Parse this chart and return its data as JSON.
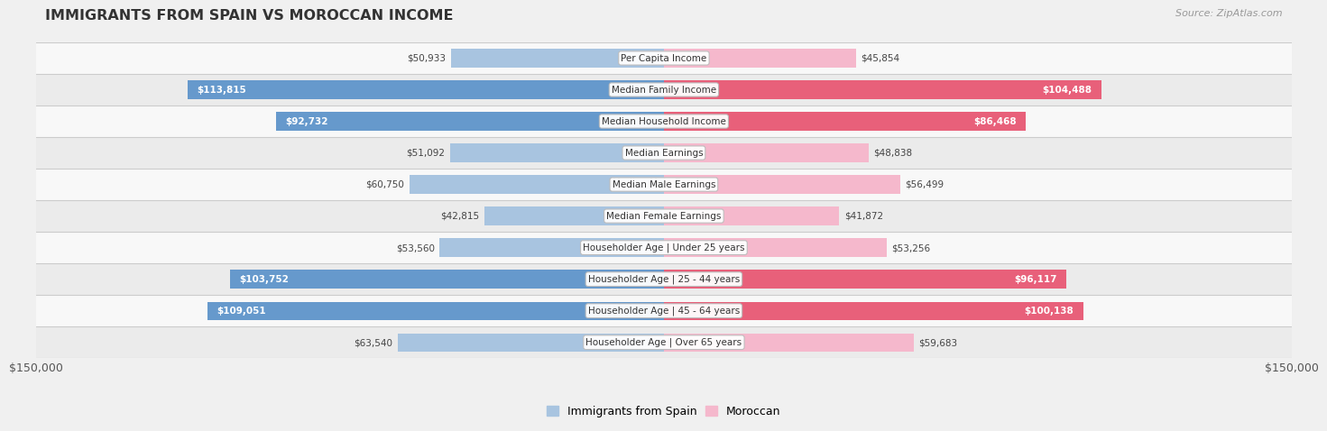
{
  "title": "IMMIGRANTS FROM SPAIN VS MOROCCAN INCOME",
  "source": "Source: ZipAtlas.com",
  "categories": [
    "Per Capita Income",
    "Median Family Income",
    "Median Household Income",
    "Median Earnings",
    "Median Male Earnings",
    "Median Female Earnings",
    "Householder Age | Under 25 years",
    "Householder Age | 25 - 44 years",
    "Householder Age | 45 - 64 years",
    "Householder Age | Over 65 years"
  ],
  "spain_values": [
    50933,
    113815,
    92732,
    51092,
    60750,
    42815,
    53560,
    103752,
    109051,
    63540
  ],
  "moroccan_values": [
    45854,
    104488,
    86468,
    48838,
    56499,
    41872,
    53256,
    96117,
    100138,
    59683
  ],
  "spain_labels": [
    "$50,933",
    "$113,815",
    "$92,732",
    "$51,092",
    "$60,750",
    "$42,815",
    "$53,560",
    "$103,752",
    "$109,051",
    "$63,540"
  ],
  "moroccan_labels": [
    "$45,854",
    "$104,488",
    "$86,468",
    "$48,838",
    "$56,499",
    "$41,872",
    "$53,256",
    "$96,117",
    "$100,138",
    "$59,683"
  ],
  "spain_color_light": "#a8c4e0",
  "spain_color_dark": "#6699cc",
  "moroccan_color_light": "#f5b8cc",
  "moroccan_color_dark": "#e8607a",
  "max_value": 150000,
  "legend_spain": "Immigrants from Spain",
  "legend_moroccan": "Moroccan",
  "background_color": "#f0f0f0",
  "row_bg_even": "#f8f8f8",
  "row_bg_odd": "#ebebeb",
  "inside_threshold": 75000,
  "bar_height": 0.58
}
